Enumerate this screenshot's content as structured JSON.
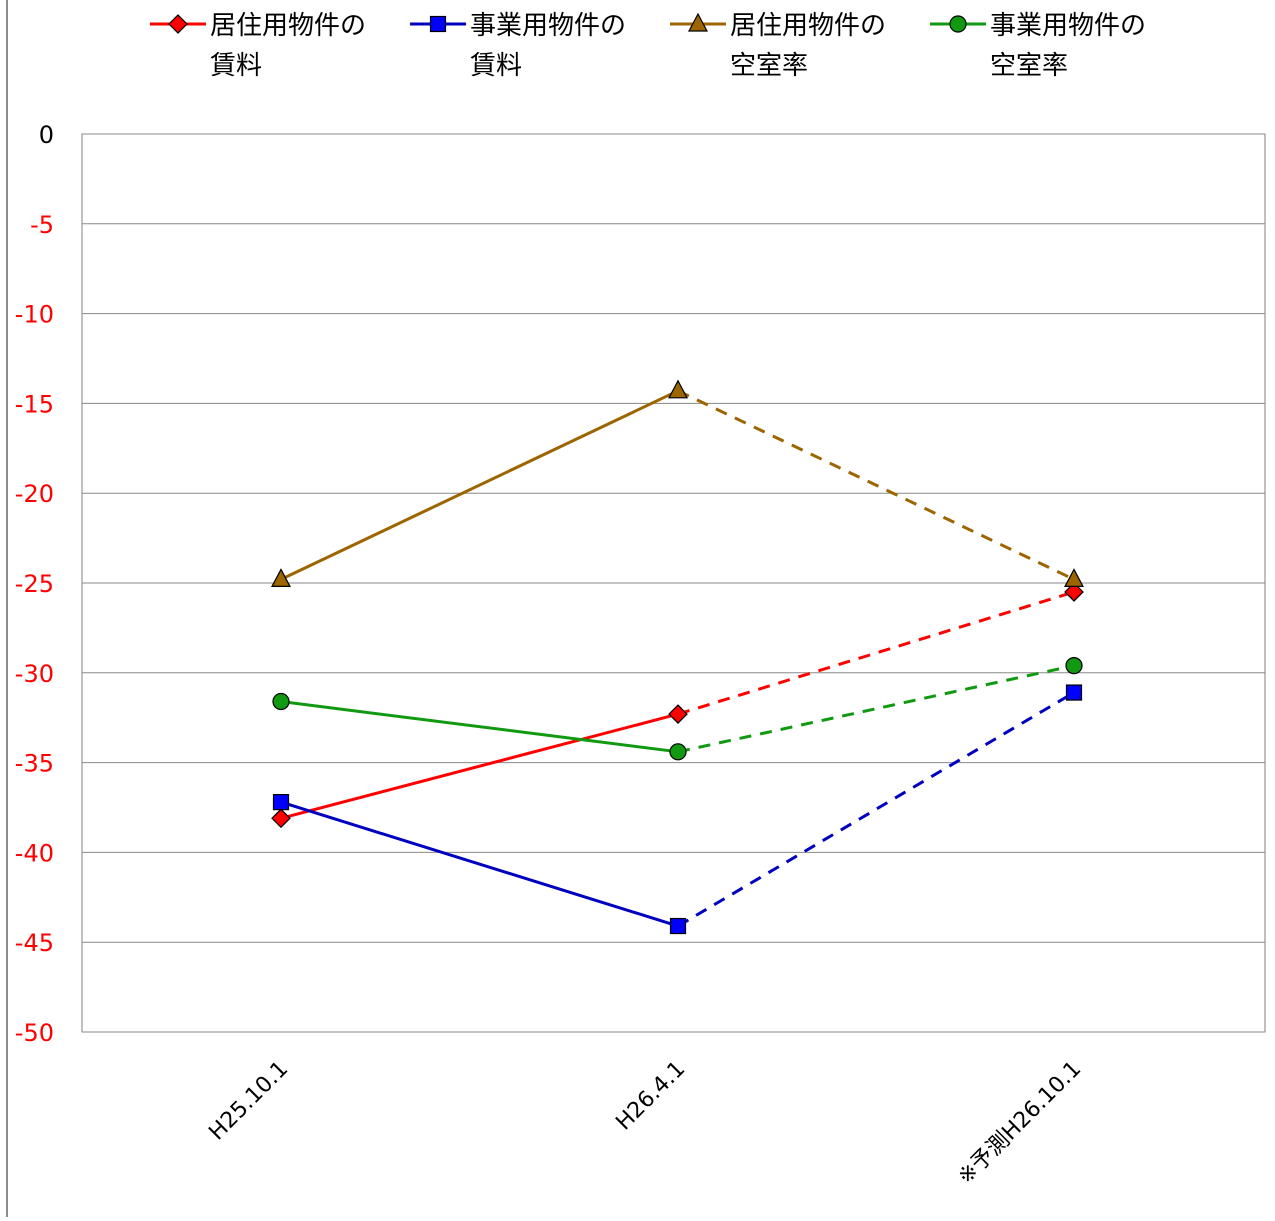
{
  "chart_data": {
    "type": "line",
    "title": "",
    "xlabel": "",
    "ylabel": "",
    "categories": [
      "H25.10.1",
      "H26.4.1",
      "※予測H26.10.1"
    ],
    "ylim": [
      -50,
      0
    ],
    "yticks": [
      0,
      -5,
      -10,
      -15,
      -20,
      -25,
      -30,
      -35,
      -40,
      -45,
      -50
    ],
    "ytick_labels": [
      "0",
      "-5",
      "-10",
      "-15",
      "-20",
      "-25",
      "-30",
      "-35",
      "-40",
      "-45",
      "-50"
    ],
    "grid": true,
    "legend_position": "top",
    "forecast_from_index": 1,
    "forecast_style": "dashed",
    "series": [
      {
        "name": "居住用物件の賃料",
        "legend_lines": [
          "居住用物件の",
          "賃料"
        ],
        "values": [
          -38.1,
          -32.3,
          -25.5
        ],
        "color": "#ff0000",
        "marker": "diamond",
        "marker_fill": "#ff0000"
      },
      {
        "name": "事業用物件の賃料",
        "legend_lines": [
          "事業用物件の",
          "賃料"
        ],
        "values": [
          -37.2,
          -44.1,
          -31.1
        ],
        "color": "#0000c0",
        "marker": "square",
        "marker_fill": "#0000ff"
      },
      {
        "name": "居住用物件の空室率",
        "legend_lines": [
          "居住用物件の",
          "空室率"
        ],
        "values": [
          -24.8,
          -14.3,
          -24.8
        ],
        "color": "#9c6500",
        "marker": "triangle",
        "marker_fill": "#9c6500"
      },
      {
        "name": "事業用物件の空室率",
        "legend_lines": [
          "事業用物件の",
          "空室率"
        ],
        "values": [
          -31.6,
          -34.4,
          -29.6
        ],
        "color": "#119911",
        "marker": "circle",
        "marker_fill": "#119911"
      }
    ],
    "colors": {
      "zero_tick": "#000000",
      "negative_tick": "#ff0000",
      "grid": "#888888",
      "axis": "#808080"
    }
  }
}
